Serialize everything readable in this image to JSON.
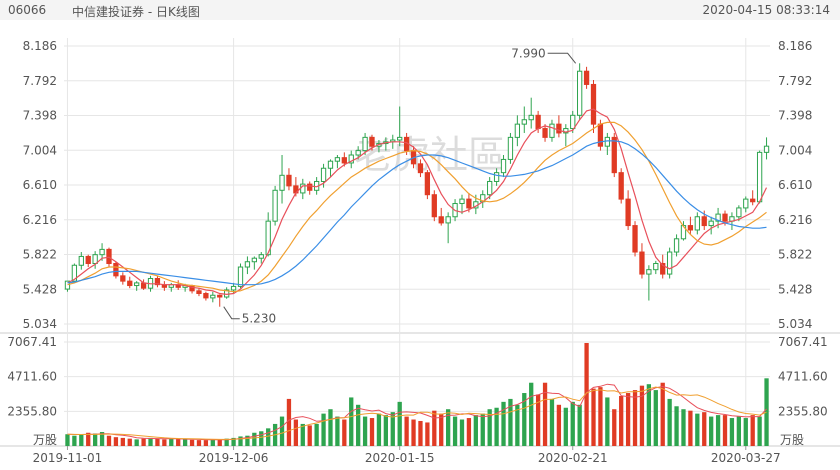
{
  "header": {
    "code": "06066",
    "title": "中信建投证券 - 日K线图",
    "datetime": "2020-04-15 08:33:14"
  },
  "watermark": "老虎社區",
  "colors": {
    "up": "#2ea44f",
    "down": "#e03b24",
    "ma5": "#e8505b",
    "ma10": "#f0a030",
    "ma20": "#3a8ee6",
    "grid": "#e6e6e6",
    "text": "#555555"
  },
  "chart_data": [
    {
      "type": "candlestick",
      "price_ticks": [
        "8.186",
        "7.792",
        "7.398",
        "7.004",
        "6.610",
        "6.216",
        "5.822",
        "5.428",
        "5.034"
      ],
      "ylim": [
        5.034,
        8.186
      ],
      "annotations": [
        {
          "label": "7.990",
          "value": 7.99,
          "kind": "high"
        },
        {
          "label": "5.230",
          "value": 5.23,
          "kind": "low"
        }
      ],
      "date_labels": [
        {
          "label": "2019-11-01",
          "index": 0
        },
        {
          "label": "2019-12-06",
          "index": 24
        },
        {
          "label": "2020-01-15",
          "index": 48
        },
        {
          "label": "2020-02-21",
          "index": 73
        },
        {
          "label": "2020-03-27",
          "index": 98
        }
      ],
      "candles": [
        [
          5.43,
          5.52,
          5.4,
          5.52
        ],
        [
          5.52,
          5.72,
          5.5,
          5.7
        ],
        [
          5.7,
          5.85,
          5.65,
          5.8
        ],
        [
          5.8,
          5.82,
          5.68,
          5.72
        ],
        [
          5.72,
          5.86,
          5.66,
          5.82
        ],
        [
          5.82,
          5.95,
          5.75,
          5.88
        ],
        [
          5.88,
          5.9,
          5.68,
          5.72
        ],
        [
          5.72,
          5.74,
          5.55,
          5.58
        ],
        [
          5.58,
          5.62,
          5.48,
          5.52
        ],
        [
          5.52,
          5.57,
          5.44,
          5.47
        ],
        [
          5.47,
          5.52,
          5.41,
          5.5
        ],
        [
          5.5,
          5.54,
          5.42,
          5.44
        ],
        [
          5.44,
          5.58,
          5.4,
          5.55
        ],
        [
          5.55,
          5.58,
          5.45,
          5.48
        ],
        [
          5.48,
          5.52,
          5.41,
          5.45
        ],
        [
          5.45,
          5.5,
          5.4,
          5.48
        ],
        [
          5.48,
          5.53,
          5.42,
          5.45
        ],
        [
          5.45,
          5.49,
          5.4,
          5.47
        ],
        [
          5.47,
          5.48,
          5.38,
          5.41
        ],
        [
          5.41,
          5.44,
          5.35,
          5.38
        ],
        [
          5.38,
          5.4,
          5.3,
          5.33
        ],
        [
          5.33,
          5.4,
          5.28,
          5.36
        ],
        [
          5.36,
          5.37,
          5.23,
          5.34
        ],
        [
          5.34,
          5.45,
          5.32,
          5.42
        ],
        [
          5.42,
          5.5,
          5.38,
          5.46
        ],
        [
          5.46,
          5.72,
          5.44,
          5.68
        ],
        [
          5.68,
          5.8,
          5.6,
          5.74
        ],
        [
          5.74,
          5.8,
          5.65,
          5.78
        ],
        [
          5.78,
          5.85,
          5.72,
          5.82
        ],
        [
          5.82,
          6.3,
          5.8,
          6.2
        ],
        [
          6.2,
          6.6,
          6.15,
          6.55
        ],
        [
          6.55,
          6.95,
          6.4,
          6.72
        ],
        [
          6.72,
          6.8,
          6.55,
          6.6
        ],
        [
          6.6,
          6.7,
          6.48,
          6.52
        ],
        [
          6.52,
          6.68,
          6.45,
          6.62
        ],
        [
          6.62,
          6.65,
          6.5,
          6.55
        ],
        [
          6.55,
          6.7,
          6.5,
          6.65
        ],
        [
          6.65,
          6.85,
          6.58,
          6.8
        ],
        [
          6.8,
          6.9,
          6.7,
          6.88
        ],
        [
          6.88,
          6.95,
          6.8,
          6.92
        ],
        [
          6.92,
          6.98,
          6.82,
          6.86
        ],
        [
          6.86,
          7.0,
          6.8,
          6.95
        ],
        [
          6.95,
          7.05,
          6.9,
          7.0
        ],
        [
          7.0,
          7.2,
          6.95,
          7.15
        ],
        [
          7.15,
          7.18,
          7.0,
          7.05
        ],
        [
          7.05,
          7.12,
          6.98,
          7.08
        ],
        [
          7.08,
          7.15,
          7.0,
          7.1
        ],
        [
          7.1,
          7.18,
          7.02,
          7.12
        ],
        [
          7.12,
          7.5,
          7.05,
          7.15
        ],
        [
          7.15,
          7.2,
          6.95,
          7.0
        ],
        [
          7.0,
          7.05,
          6.8,
          6.85
        ],
        [
          6.85,
          6.9,
          6.7,
          6.75
        ],
        [
          6.75,
          6.78,
          6.45,
          6.5
        ],
        [
          6.5,
          6.55,
          6.2,
          6.25
        ],
        [
          6.25,
          6.35,
          6.15,
          6.18
        ],
        [
          6.18,
          6.3,
          5.95,
          6.25
        ],
        [
          6.25,
          6.45,
          6.2,
          6.4
        ],
        [
          6.4,
          6.5,
          6.28,
          6.45
        ],
        [
          6.45,
          6.52,
          6.3,
          6.35
        ],
        [
          6.35,
          6.5,
          6.28,
          6.42
        ],
        [
          6.42,
          6.55,
          6.35,
          6.5
        ],
        [
          6.5,
          6.7,
          6.45,
          6.65
        ],
        [
          6.65,
          6.8,
          6.6,
          6.75
        ],
        [
          6.75,
          6.95,
          6.7,
          6.9
        ],
        [
          6.9,
          7.2,
          6.85,
          7.15
        ],
        [
          7.15,
          7.4,
          7.05,
          7.3
        ],
        [
          7.3,
          7.5,
          7.2,
          7.35
        ],
        [
          7.35,
          7.6,
          7.25,
          7.4
        ],
        [
          7.4,
          7.45,
          7.2,
          7.25
        ],
        [
          7.25,
          7.3,
          7.1,
          7.15
        ],
        [
          7.15,
          7.35,
          7.1,
          7.3
        ],
        [
          7.3,
          7.4,
          7.15,
          7.2
        ],
        [
          7.2,
          7.3,
          7.05,
          7.25
        ],
        [
          7.25,
          7.45,
          7.2,
          7.4
        ],
        [
          7.4,
          7.99,
          7.35,
          7.9
        ],
        [
          7.9,
          7.95,
          7.7,
          7.75
        ],
        [
          7.75,
          7.8,
          7.2,
          7.3
        ],
        [
          7.3,
          7.35,
          7.0,
          7.05
        ],
        [
          7.05,
          7.2,
          6.95,
          7.15
        ],
        [
          7.15,
          7.2,
          6.7,
          6.75
        ],
        [
          6.75,
          6.8,
          6.4,
          6.45
        ],
        [
          6.45,
          6.55,
          6.1,
          6.15
        ],
        [
          6.15,
          6.2,
          5.8,
          5.85
        ],
        [
          5.85,
          5.95,
          5.55,
          5.6
        ],
        [
          5.6,
          5.7,
          5.3,
          5.65
        ],
        [
          5.65,
          5.75,
          5.6,
          5.72
        ],
        [
          5.72,
          5.82,
          5.55,
          5.6
        ],
        [
          5.6,
          5.9,
          5.55,
          5.85
        ],
        [
          5.85,
          6.05,
          5.8,
          6.0
        ],
        [
          6.0,
          6.2,
          5.98,
          6.15
        ],
        [
          6.15,
          6.25,
          6.05,
          6.1
        ],
        [
          6.1,
          6.3,
          6.05,
          6.25
        ],
        [
          6.25,
          6.32,
          6.1,
          6.15
        ],
        [
          6.15,
          6.25,
          6.05,
          6.2
        ],
        [
          6.2,
          6.35,
          6.12,
          6.28
        ],
        [
          6.28,
          6.32,
          6.15,
          6.2
        ],
        [
          6.2,
          6.3,
          6.1,
          6.25
        ],
        [
          6.25,
          6.38,
          6.2,
          6.35
        ],
        [
          6.35,
          6.48,
          6.3,
          6.45
        ],
        [
          6.45,
          6.55,
          6.38,
          6.42
        ],
        [
          6.42,
          7.0,
          6.4,
          6.98
        ],
        [
          6.98,
          7.15,
          6.9,
          7.05
        ]
      ],
      "ma5": [
        5.5,
        5.54,
        5.6,
        5.66,
        5.71,
        5.78,
        5.79,
        5.74,
        5.68,
        5.62,
        5.56,
        5.5,
        5.49,
        5.49,
        5.48,
        5.48,
        5.48,
        5.47,
        5.45,
        5.44,
        5.42,
        5.41,
        5.38,
        5.37,
        5.38,
        5.43,
        5.51,
        5.59,
        5.7,
        5.84,
        6.02,
        6.22,
        6.38,
        6.52,
        6.6,
        6.6,
        6.59,
        6.63,
        6.7,
        6.78,
        6.84,
        6.88,
        6.92,
        6.98,
        7.03,
        7.07,
        7.09,
        7.1,
        7.1,
        7.09,
        7.04,
        6.96,
        6.84,
        6.67,
        6.51,
        6.39,
        6.32,
        6.3,
        6.33,
        6.37,
        6.42,
        6.48,
        6.55,
        6.65,
        6.79,
        6.95,
        7.09,
        7.2,
        7.25,
        7.28,
        7.26,
        7.23,
        7.21,
        7.23,
        7.35,
        7.45,
        7.47,
        7.42,
        7.38,
        7.24,
        7.02,
        6.75,
        6.49,
        6.21,
        5.97,
        5.79,
        5.7,
        5.66,
        5.7,
        5.79,
        5.88,
        5.97,
        6.06,
        6.12,
        6.16,
        6.18,
        6.2,
        6.22,
        6.26,
        6.3,
        6.42,
        6.58
      ],
      "ma10": [
        5.48,
        5.5,
        5.53,
        5.57,
        5.61,
        5.66,
        5.68,
        5.68,
        5.67,
        5.66,
        5.64,
        5.62,
        5.6,
        5.58,
        5.55,
        5.52,
        5.5,
        5.48,
        5.47,
        5.46,
        5.45,
        5.44,
        5.42,
        5.41,
        5.4,
        5.41,
        5.44,
        5.47,
        5.52,
        5.59,
        5.69,
        5.8,
        5.91,
        6.03,
        6.14,
        6.24,
        6.32,
        6.41,
        6.49,
        6.56,
        6.63,
        6.7,
        6.75,
        6.8,
        6.84,
        6.88,
        6.91,
        6.94,
        6.97,
        6.99,
        7.0,
        6.99,
        6.96,
        6.91,
        6.84,
        6.76,
        6.68,
        6.59,
        6.51,
        6.46,
        6.43,
        6.42,
        6.43,
        6.46,
        6.51,
        6.57,
        6.64,
        6.72,
        6.81,
        6.89,
        6.95,
        7.0,
        7.04,
        7.08,
        7.14,
        7.2,
        7.25,
        7.3,
        7.32,
        7.32,
        7.28,
        7.21,
        7.12,
        7.01,
        6.88,
        6.73,
        6.57,
        6.41,
        6.26,
        6.14,
        6.05,
        5.98,
        5.94,
        5.93,
        5.95,
        5.99,
        6.03,
        6.08,
        6.14,
        6.19,
        6.24,
        6.3
      ],
      "ma20": [
        5.5,
        5.51,
        5.53,
        5.55,
        5.57,
        5.6,
        5.62,
        5.63,
        5.63,
        5.63,
        5.63,
        5.62,
        5.61,
        5.6,
        5.59,
        5.58,
        5.57,
        5.56,
        5.55,
        5.54,
        5.53,
        5.52,
        5.51,
        5.5,
        5.49,
        5.48,
        5.48,
        5.48,
        5.49,
        5.51,
        5.54,
        5.58,
        5.63,
        5.69,
        5.76,
        5.84,
        5.92,
        6.01,
        6.1,
        6.19,
        6.27,
        6.36,
        6.44,
        6.52,
        6.6,
        6.67,
        6.73,
        6.79,
        6.84,
        6.88,
        6.92,
        6.94,
        6.95,
        6.95,
        6.94,
        6.92,
        6.89,
        6.86,
        6.83,
        6.8,
        6.77,
        6.74,
        6.72,
        6.71,
        6.71,
        6.72,
        6.73,
        6.75,
        6.77,
        6.8,
        6.83,
        6.87,
        6.91,
        6.95,
        7.0,
        7.05,
        7.08,
        7.1,
        7.11,
        7.11,
        7.1,
        7.07,
        7.02,
        6.96,
        6.89,
        6.81,
        6.72,
        6.63,
        6.54,
        6.46,
        6.39,
        6.33,
        6.28,
        6.24,
        6.21,
        6.18,
        6.16,
        6.14,
        6.13,
        6.12,
        6.12,
        6.13
      ]
    },
    {
      "type": "bar",
      "unit_label": "万股",
      "volume_ticks": [
        "7067.41",
        "4711.60",
        "2355.80"
      ],
      "ylim": [
        0,
        7067.41
      ],
      "volumes": [
        800,
        700,
        750,
        900,
        850,
        950,
        700,
        600,
        550,
        500,
        450,
        500,
        550,
        480,
        450,
        500,
        470,
        450,
        420,
        400,
        400,
        450,
        420,
        500,
        550,
        650,
        700,
        900,
        1000,
        1200,
        1500,
        2000,
        3200,
        1800,
        1500,
        1400,
        1500,
        2200,
        2500,
        2000,
        1800,
        3300,
        2800,
        2000,
        1900,
        2200,
        2100,
        2300,
        3000,
        2000,
        1800,
        1700,
        1600,
        2400,
        2200,
        2500,
        2000,
        1800,
        1900,
        2100,
        2200,
        2500,
        2600,
        3000,
        3200,
        2800,
        3600,
        4300,
        3500,
        4300,
        3200,
        2800,
        2600,
        3000,
        2800,
        7000,
        3900,
        4000,
        3300,
        2500,
        3400,
        3600,
        3800,
        4100,
        4200,
        3800,
        4300,
        3200,
        2700,
        2500,
        2400,
        2200,
        2300,
        2000,
        2100,
        2100,
        1900,
        2000,
        1900,
        2100,
        2000,
        4600
      ],
      "ma5": [
        800,
        780,
        780,
        800,
        800,
        830,
        830,
        760,
        730,
        660,
        560,
        520,
        510,
        500,
        490,
        490,
        490,
        470,
        460,
        450,
        430,
        420,
        420,
        430,
        460,
        510,
        570,
        660,
        760,
        890,
        1070,
        1320,
        1760,
        1940,
        2000,
        1880,
        1680,
        1720,
        1820,
        1920,
        1920,
        2360,
        2560,
        2460,
        2380,
        2440,
        2200,
        2100,
        2300,
        2320,
        2280,
        2240,
        2080,
        1900,
        1940,
        2080,
        2100,
        2180,
        2180,
        2060,
        2000,
        2040,
        2220,
        2460,
        2700,
        2820,
        3040,
        3380,
        3480,
        3640,
        3580,
        3560,
        3280,
        2880,
        2680,
        3640,
        3980,
        4060,
        4200,
        4140,
        3420,
        3360,
        3320,
        3380,
        3740,
        3960,
        4040,
        3920,
        3640,
        3300,
        2940,
        2600,
        2420,
        2280,
        2200,
        2140,
        2060,
        2020,
        1980,
        2000,
        2000,
        2520
      ],
      "ma10": [
        800,
        790,
        780,
        780,
        790,
        800,
        810,
        810,
        790,
        760,
        720,
        680,
        640,
        600,
        560,
        530,
        510,
        500,
        490,
        480,
        470,
        460,
        450,
        450,
        460,
        480,
        510,
        550,
        600,
        670,
        760,
        880,
        1040,
        1200,
        1340,
        1470,
        1560,
        1700,
        1810,
        1890,
        1920,
        2000,
        2120,
        2180,
        2230,
        2180,
        2020,
        1970,
        2060,
        2110,
        2100,
        2300,
        2300,
        2180,
        2160,
        2260,
        2220,
        2140,
        2220,
        2200,
        2170,
        2140,
        2150,
        2190,
        2320,
        2460,
        2570,
        2780,
        2970,
        3170,
        3180,
        3300,
        3330,
        3180,
        3080,
        3610,
        3770,
        3810,
        3740,
        3750,
        3600,
        3680,
        3690,
        3720,
        3880,
        4010,
        3890,
        3640,
        3460,
        3480,
        3440,
        3470,
        3320,
        3110,
        2880,
        2700,
        2490,
        2310,
        2210,
        2170,
        2100,
        2300
      ]
    }
  ]
}
